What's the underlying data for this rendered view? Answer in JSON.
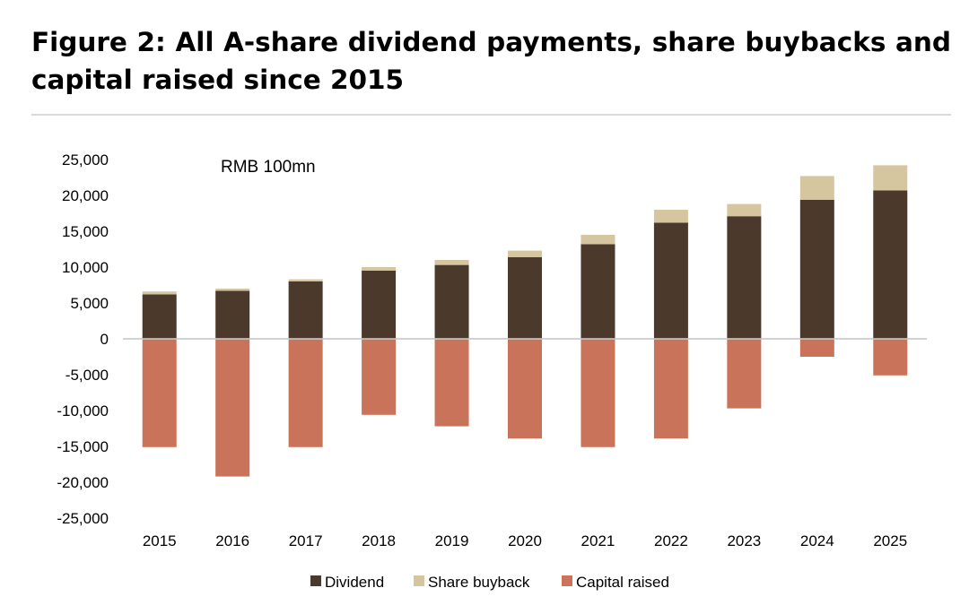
{
  "title": "Figure 2: All A-share dividend payments, share buybacks and capital raised since 2015",
  "chart_data": {
    "type": "bar",
    "stacked": true,
    "unit_label": "RMB 100mn",
    "categories": [
      "2015",
      "2016",
      "2017",
      "2018",
      "2019",
      "2020",
      "2021",
      "2022",
      "2023",
      "2024",
      "2025"
    ],
    "series": [
      {
        "name": "Dividend",
        "color": "#4b3a2c",
        "values": [
          6200,
          6700,
          8000,
          9500,
          10300,
          11400,
          13200,
          16200,
          17100,
          19400,
          20700
        ]
      },
      {
        "name": "Share buyback",
        "color": "#d6c6a0",
        "values": [
          400,
          300,
          300,
          500,
          700,
          900,
          1300,
          1800,
          1700,
          3300,
          3500
        ]
      },
      {
        "name": "Capital raised",
        "color": "#c9735a",
        "values": [
          -15100,
          -19200,
          -15100,
          -10600,
          -12200,
          -13900,
          -15100,
          -13900,
          -9700,
          -2500,
          -5100
        ]
      }
    ],
    "ylim": [
      -25000,
      25000
    ],
    "yticks": [
      25000,
      20000,
      15000,
      10000,
      5000,
      0,
      -5000,
      -10000,
      -15000,
      -20000,
      -25000
    ],
    "ytick_labels": [
      "25,000",
      "20,000",
      "15,000",
      "10,000",
      "5,000",
      "0",
      "-5,000",
      "-10,000",
      "-15,000",
      "-20,000",
      "-25,000"
    ],
    "xlabel": "",
    "ylabel": "",
    "legend_position": "bottom"
  }
}
